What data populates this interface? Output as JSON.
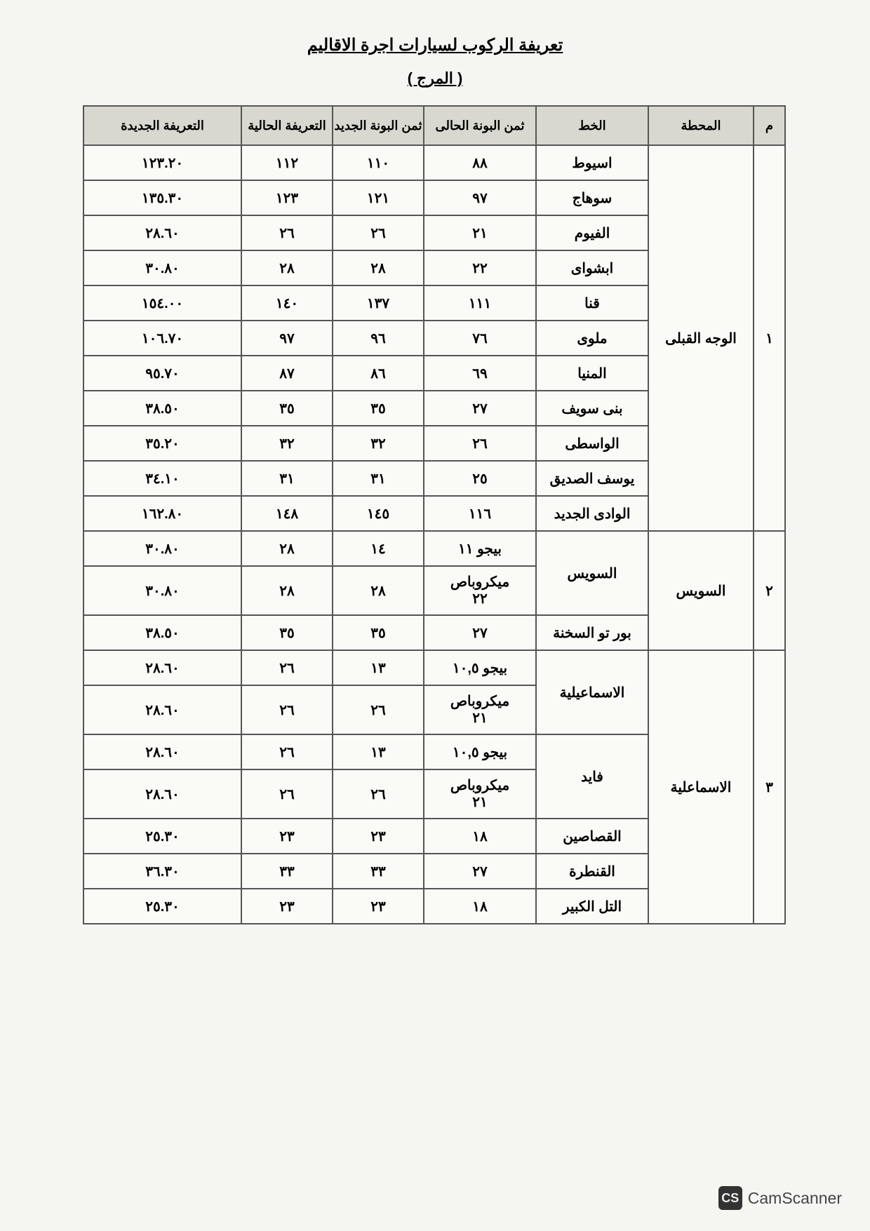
{
  "title": "تعريفة الركوب لسيارات اجرة الاقاليم",
  "subtitle": "( المرج )",
  "headers": {
    "m": "م",
    "station": "المحطة",
    "line": "الخط",
    "current_bon": "ثمن البونة الحالى",
    "new_bon": "ثمن البونة الجديد",
    "current_fare": "التعريفة الحالية",
    "new_fare": "التعريفة الجديدة"
  },
  "groups": [
    {
      "idx": "١",
      "station": "الوجه القبلى",
      "rows": [
        {
          "line": "اسيوط",
          "cur_bon": "٨٨",
          "new_bon": "١١٠",
          "cur_fare": "١١٢",
          "new_fare": "١٢٣.٢٠"
        },
        {
          "line": "سوهاج",
          "cur_bon": "٩٧",
          "new_bon": "١٢١",
          "cur_fare": "١٢٣",
          "new_fare": "١٣٥.٣٠"
        },
        {
          "line": "الفيوم",
          "cur_bon": "٢١",
          "new_bon": "٢٦",
          "cur_fare": "٢٦",
          "new_fare": "٢٨.٦٠"
        },
        {
          "line": "ابشواى",
          "cur_bon": "٢٢",
          "new_bon": "٢٨",
          "cur_fare": "٢٨",
          "new_fare": "٣٠.٨٠"
        },
        {
          "line": "قنا",
          "cur_bon": "١١١",
          "new_bon": "١٣٧",
          "cur_fare": "١٤٠",
          "new_fare": "١٥٤.٠٠"
        },
        {
          "line": "ملوى",
          "cur_bon": "٧٦",
          "new_bon": "٩٦",
          "cur_fare": "٩٧",
          "new_fare": "١٠٦.٧٠"
        },
        {
          "line": "المنيا",
          "cur_bon": "٦٩",
          "new_bon": "٨٦",
          "cur_fare": "٨٧",
          "new_fare": "٩٥.٧٠"
        },
        {
          "line": "بنى سويف",
          "cur_bon": "٢٧",
          "new_bon": "٣٥",
          "cur_fare": "٣٥",
          "new_fare": "٣٨.٥٠"
        },
        {
          "line": "الواسطى",
          "cur_bon": "٢٦",
          "new_bon": "٣٢",
          "cur_fare": "٣٢",
          "new_fare": "٣٥.٢٠"
        },
        {
          "line": "يوسف الصديق",
          "cur_bon": "٢٥",
          "new_bon": "٣١",
          "cur_fare": "٣١",
          "new_fare": "٣٤.١٠"
        },
        {
          "line": "الوادى الجديد",
          "cur_bon": "١١٦",
          "new_bon": "١٤٥",
          "cur_fare": "١٤٨",
          "new_fare": "١٦٢.٨٠"
        }
      ]
    },
    {
      "idx": "٢",
      "station": "السويس",
      "rows": [
        {
          "line": "السويس",
          "cur_bon": "بيجو ١١",
          "new_bon": "١٤",
          "cur_fare": "٢٨",
          "new_fare": "٣٠.٨٠",
          "sub": true,
          "rowspan": 2
        },
        {
          "line": "",
          "cur_bon": "ميكروباص\n٢٢",
          "new_bon": "٢٨",
          "cur_fare": "٢٨",
          "new_fare": "٣٠.٨٠",
          "skip_line": true
        },
        {
          "line": "بور تو السخنة",
          "cur_bon": "٢٧",
          "new_bon": "٣٥",
          "cur_fare": "٣٥",
          "new_fare": "٣٨.٥٠"
        }
      ]
    },
    {
      "idx": "٣",
      "station": "الاسماعلية",
      "rows": [
        {
          "line": "الاسماعيلية",
          "cur_bon": "بيجو ١٠,٥",
          "new_bon": "١٣",
          "cur_fare": "٢٦",
          "new_fare": "٢٨.٦٠",
          "sub": true,
          "rowspan": 2
        },
        {
          "line": "",
          "cur_bon": "ميكروباص\n٢١",
          "new_bon": "٢٦",
          "cur_fare": "٢٦",
          "new_fare": "٢٨.٦٠",
          "skip_line": true
        },
        {
          "line": "فايد",
          "cur_bon": "بيجو ١٠,٥",
          "new_bon": "١٣",
          "cur_fare": "٢٦",
          "new_fare": "٢٨.٦٠",
          "sub": true,
          "rowspan": 2
        },
        {
          "line": "",
          "cur_bon": "ميكروباص\n٢١",
          "new_bon": "٢٦",
          "cur_fare": "٢٦",
          "new_fare": "٢٨.٦٠",
          "skip_line": true
        },
        {
          "line": "القصاصين",
          "cur_bon": "١٨",
          "new_bon": "٢٣",
          "cur_fare": "٢٣",
          "new_fare": "٢٥.٣٠"
        },
        {
          "line": "القنطرة",
          "cur_bon": "٢٧",
          "new_bon": "٣٣",
          "cur_fare": "٣٣",
          "new_fare": "٣٦.٣٠"
        },
        {
          "line": "التل الكبير",
          "cur_bon": "١٨",
          "new_bon": "٢٣",
          "cur_fare": "٢٣",
          "new_fare": "٢٥.٣٠"
        }
      ]
    }
  ],
  "watermark": {
    "badge": "CS",
    "text": "CamScanner"
  }
}
